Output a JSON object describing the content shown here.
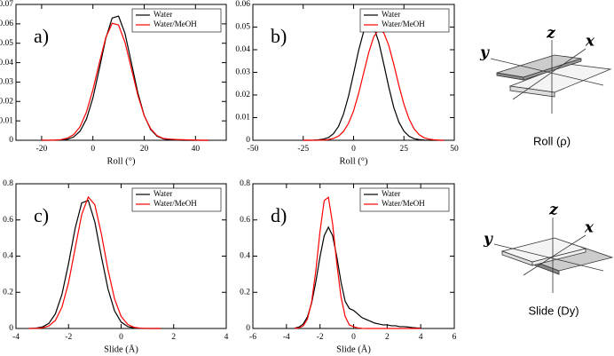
{
  "chart_data": [
    {
      "type": "line",
      "panel_label": "a)",
      "xlabel": "Roll (°)",
      "x": [
        -20,
        -17.5,
        -15,
        -12.5,
        -10,
        -7.5,
        -5,
        -2.5,
        0,
        2.5,
        5,
        7.5,
        10,
        12.5,
        15,
        17.5,
        20,
        22.5,
        25,
        27.5,
        30,
        32.5,
        35,
        37.5,
        40,
        42.5,
        45
      ],
      "series": [
        {
          "name": "Water",
          "color": "#000000",
          "values": [
            0,
            0,
            3e-05,
            0.0001,
            0.0005,
            0.0017,
            0.0047,
            0.011,
            0.0218,
            0.0368,
            0.0524,
            0.063,
            0.064,
            0.0551,
            0.04,
            0.0246,
            0.0128,
            0.0056,
            0.0021,
            0.0007,
            0.0002,
            0.0001,
            0,
            0,
            0,
            0,
            0
          ]
        },
        {
          "name": "Water/MeOH",
          "color": "#ff0000",
          "values": [
            0,
            2e-05,
            0.0001,
            0.0003,
            0.0011,
            0.0029,
            0.007,
            0.0146,
            0.026,
            0.0398,
            0.0528,
            0.0603,
            0.0594,
            0.0505,
            0.037,
            0.0233,
            0.0127,
            0.006,
            0.0024,
            0.0009,
            0.0006,
            0.0004,
            0.0003,
            0.0002,
            0.0001,
            0,
            0
          ]
        }
      ],
      "xlim": [
        -30,
        52
      ],
      "ylim": [
        0,
        0.07
      ],
      "xticks": [
        -20,
        0,
        20,
        40
      ],
      "yticks": [
        0,
        0.01,
        0.02,
        0.03,
        0.04,
        0.05,
        0.06,
        0.07
      ],
      "legend": "upper right"
    },
    {
      "type": "line",
      "panel_label": "b)",
      "xlabel": "Roll (°)",
      "x": [
        -25,
        -22.5,
        -20,
        -17.5,
        -15,
        -12.5,
        -10,
        -7.5,
        -5,
        -2.5,
        0,
        2.5,
        5,
        7.5,
        10,
        12.5,
        15,
        17.5,
        20,
        22.5,
        25,
        27.5,
        30,
        32.5,
        35,
        37.5,
        40,
        42.5,
        45
      ],
      "series": [
        {
          "name": "Water",
          "color": "#000000",
          "values": [
            0,
            0,
            5e-05,
            0.0002,
            0.0005,
            0.0012,
            0.0029,
            0.0061,
            0.0116,
            0.0195,
            0.0294,
            0.0397,
            0.048,
            0.052,
            0.05,
            0.0434,
            0.0336,
            0.0234,
            0.0144,
            0.008,
            0.004,
            0.0018,
            0.0007,
            0.0003,
            0.0001,
            0,
            0,
            0,
            0
          ]
        },
        {
          "name": "Water/MeOH",
          "color": "#ff0000",
          "values": [
            0,
            0,
            0,
            3e-05,
            0.0001,
            0.0003,
            0.0008,
            0.0018,
            0.0039,
            0.0075,
            0.013,
            0.0207,
            0.0297,
            0.0387,
            0.0457,
            0.049,
            0.0475,
            0.0418,
            0.0334,
            0.0242,
            0.0159,
            0.0095,
            0.0051,
            0.0025,
            0.0011,
            0.0005,
            0.0002,
            5e-05,
            0
          ]
        }
      ],
      "xlim": [
        -50,
        50
      ],
      "ylim": [
        0,
        0.06
      ],
      "xticks": [
        -50,
        -25,
        0,
        25,
        50
      ],
      "yticks": [
        0,
        0.01,
        0.02,
        0.03,
        0.04,
        0.05,
        0.06
      ],
      "legend": "upper right"
    },
    {
      "type": "line",
      "panel_label": "c)",
      "xlabel": "Slide (Å)",
      "x": [
        -3.5,
        -3.25,
        -3,
        -2.75,
        -2.5,
        -2.25,
        -2,
        -1.75,
        -1.5,
        -1.25,
        -1,
        -0.75,
        -0.5,
        -0.25,
        0,
        0.25,
        0.5,
        0.75,
        1,
        1.25,
        1.5
      ],
      "series": [
        {
          "name": "Water",
          "color": "#000000",
          "values": [
            0.0003,
            0.0018,
            0.008,
            0.028,
            0.081,
            0.189,
            0.359,
            0.553,
            0.694,
            0.708,
            0.589,
            0.397,
            0.219,
            0.0974,
            0.0355,
            0.0105,
            0.0025,
            0.0005,
            0.0001,
            0,
            0
          ]
        },
        {
          "name": "Water/MeOH",
          "color": "#ff0000",
          "values": [
            0.0001,
            0.0007,
            0.0034,
            0.0138,
            0.045,
            0.118,
            0.253,
            0.443,
            0.629,
            0.727,
            0.684,
            0.522,
            0.325,
            0.164,
            0.067,
            0.0227,
            0.0061,
            0.0014,
            0.0002,
            0,
            0
          ]
        }
      ],
      "xlim": [
        -4,
        4
      ],
      "ylim": [
        0,
        0.8
      ],
      "xticks": [
        -4,
        -2,
        0,
        2,
        4
      ],
      "yticks": [
        0,
        0.2,
        0.4,
        0.6,
        0.8
      ],
      "legend": "upper right"
    },
    {
      "type": "line",
      "panel_label": "d)",
      "xlabel": "Slide (Å)",
      "x": [
        -3.5,
        -3.25,
        -3,
        -2.75,
        -2.5,
        -2.25,
        -2,
        -1.75,
        -1.5,
        -1.25,
        -1,
        -0.75,
        -0.5,
        -0.25,
        0,
        0.25,
        0.5,
        0.75,
        1,
        1.25,
        1.5,
        1.75,
        2,
        2.25,
        2.5,
        2.75,
        3,
        3.25,
        3.5,
        3.75,
        4
      ],
      "series": [
        {
          "name": "Water",
          "color": "#000000",
          "values": [
            0.0022,
            0.008,
            0.0246,
            0.064,
            0.14,
            0.257,
            0.397,
            0.513,
            0.56,
            0.513,
            0.397,
            0.257,
            0.15,
            0.11,
            0.1,
            0.08,
            0.06,
            0.05,
            0.04,
            0.03,
            0.025,
            0.02,
            0.02,
            0.015,
            0.015,
            0.01,
            0.01,
            0.008,
            0.005,
            0.003,
            0.002
          ]
        },
        {
          "name": "Water/MeOH",
          "color": "#ff0000",
          "values": [
            0.0005,
            0.0032,
            0.0147,
            0.052,
            0.146,
            0.318,
            0.537,
            0.707,
            0.725,
            0.579,
            0.359,
            0.175,
            0.066,
            0.0193,
            0.01,
            0.003,
            0.001,
            0,
            0,
            0,
            0,
            0,
            0,
            0,
            0,
            0,
            0,
            0,
            0,
            0,
            0
          ]
        }
      ],
      "xlim": [
        -6,
        6
      ],
      "ylim": [
        0,
        0.8
      ],
      "xticks": [
        -6,
        -4,
        -2,
        0,
        2,
        4,
        6
      ],
      "yticks": [
        0,
        0.2,
        0.4,
        0.6,
        0.8
      ],
      "legend": "upper right"
    }
  ],
  "diagrams": [
    {
      "axis_labels": {
        "z": "z",
        "x": "x",
        "y": "y"
      },
      "caption": "Roll (ρ)"
    },
    {
      "axis_labels": {
        "z": "z",
        "x": "x",
        "y": "y"
      },
      "caption": "Slide (Dy)"
    }
  ]
}
